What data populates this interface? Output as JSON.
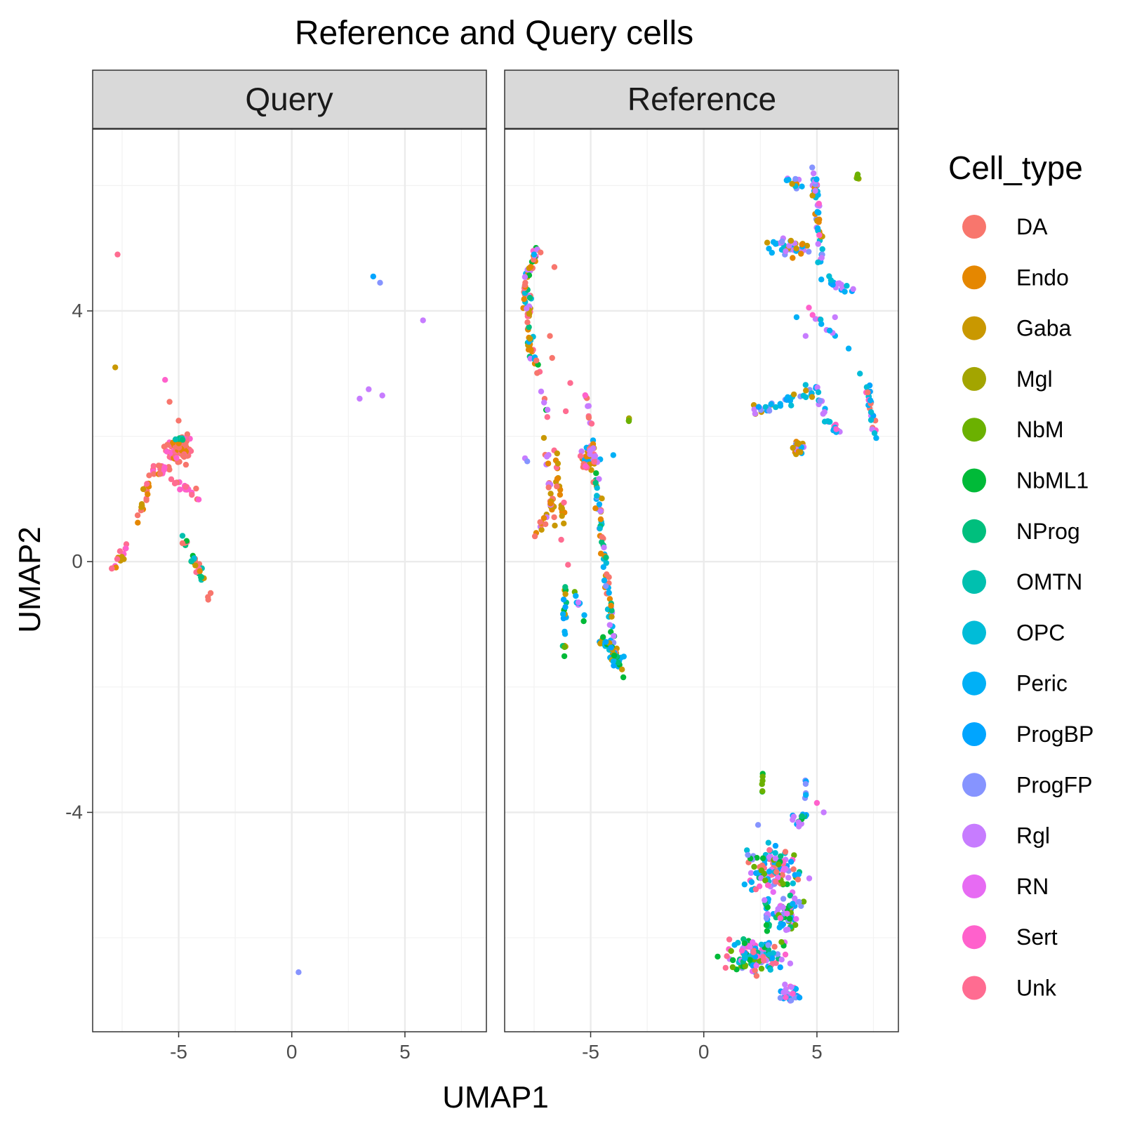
{
  "chart_data": {
    "type": "scatter",
    "title": "Reference and Query cells",
    "xlabel": "UMAP1",
    "ylabel": "UMAP2",
    "xlim": [
      -8.8,
      8.6
    ],
    "ylim": [
      -7.5,
      6.9
    ],
    "x_ticks": [
      -5,
      0,
      5
    ],
    "y_ticks": [
      -4,
      0,
      4
    ],
    "grid": true,
    "legend": {
      "title": "Cell_type",
      "position": "right",
      "entries": [
        {
          "name": "DA",
          "color": "#F8766D"
        },
        {
          "name": "Endo",
          "color": "#E58700"
        },
        {
          "name": "Gaba",
          "color": "#C99800"
        },
        {
          "name": "Mgl",
          "color": "#A3A500"
        },
        {
          "name": "NbM",
          "color": "#6BB100"
        },
        {
          "name": "NbML1",
          "color": "#00BA38"
        },
        {
          "name": "NProg",
          "color": "#00BF7D"
        },
        {
          "name": "OMTN",
          "color": "#00C0AF"
        },
        {
          "name": "OPC",
          "color": "#00BCD8"
        },
        {
          "name": "Peric",
          "color": "#00B0F6"
        },
        {
          "name": "ProgBP",
          "color": "#00A5FF"
        },
        {
          "name": "ProgFP",
          "color": "#8694FF"
        },
        {
          "name": "Rgl",
          "color": "#C77CFF"
        },
        {
          "name": "RN",
          "color": "#E76BF3"
        },
        {
          "name": "Sert",
          "color": "#FF61CC"
        },
        {
          "name": "Unk",
          "color": "#FF6C91"
        }
      ]
    },
    "panels": [
      {
        "label": "Query",
        "clusters": [
          {
            "mix": [
              "DA",
              "DA",
              "DA",
              "DA",
              "Unk",
              "Sert",
              "Endo"
            ],
            "shape": "rect",
            "cx": -5.0,
            "cy": 1.8,
            "rx": 0.8,
            "ry": 0.28,
            "n": 90
          },
          {
            "mix": [
              "DA",
              "DA",
              "Unk",
              "Endo",
              "Sert"
            ],
            "shape": "band",
            "x0": -6.4,
            "y0": 1.4,
            "x1": -5.4,
            "y1": 1.5,
            "w": 0.18,
            "n": 20
          },
          {
            "mix": [
              "DA",
              "Unk",
              "Endo",
              "Gaba"
            ],
            "shape": "band",
            "x0": -6.3,
            "y0": 1.3,
            "x1": -6.8,
            "y1": 0.6,
            "w": 0.18,
            "n": 16
          },
          {
            "mix": [
              "DA",
              "Unk",
              "Endo",
              "Gaba",
              "Sert"
            ],
            "shape": "band",
            "x0": -7.0,
            "y0": 0.4,
            "x1": -8.0,
            "y1": -0.2,
            "w": 0.15,
            "n": 16
          },
          {
            "mix": [
              "DA",
              "Unk",
              "Sert"
            ],
            "shape": "band",
            "x0": -5.4,
            "y0": 1.3,
            "x1": -4.1,
            "y1": 1.0,
            "w": 0.15,
            "n": 18
          },
          {
            "mix": [
              "DA",
              "Unk",
              "OMTN",
              "NbML1",
              "NProg",
              "Endo",
              "Gaba",
              "OPC"
            ],
            "shape": "band",
            "x0": -4.8,
            "y0": 0.4,
            "x1": -3.9,
            "y1": -0.3,
            "w": 0.15,
            "n": 28
          },
          {
            "mix": [
              "DA"
            ],
            "shape": "band",
            "x0": -3.7,
            "y0": -0.6,
            "x1": -3.5,
            "y1": -0.5,
            "w": 0.05,
            "n": 3
          },
          {
            "mix": [
              "OMTN",
              "NProg"
            ],
            "shape": "rect",
            "cx": -5.0,
            "cy": 1.95,
            "rx": 0.4,
            "ry": 0.06,
            "n": 6
          }
        ],
        "points": [
          {
            "x": -7.7,
            "y": 4.9,
            "type": "Unk"
          },
          {
            "x": -7.8,
            "y": 3.1,
            "type": "Gaba"
          },
          {
            "x": -5.6,
            "y": 2.9,
            "type": "Sert"
          },
          {
            "x": -5.4,
            "y": 2.55,
            "type": "DA"
          },
          {
            "x": -5.0,
            "y": 2.25,
            "type": "DA"
          },
          {
            "x": 3.6,
            "y": 4.55,
            "type": "ProgBP"
          },
          {
            "x": 3.9,
            "y": 4.45,
            "type": "ProgFP"
          },
          {
            "x": 5.8,
            "y": 3.85,
            "type": "Rgl"
          },
          {
            "x": 3.4,
            "y": 2.75,
            "type": "Rgl"
          },
          {
            "x": 3.0,
            "y": 2.6,
            "type": "Rgl"
          },
          {
            "x": 4.0,
            "y": 2.65,
            "type": "Rgl"
          },
          {
            "x": 0.3,
            "y": -6.55,
            "type": "ProgFP"
          }
        ]
      },
      {
        "label": "Reference",
        "clusters": [
          {
            "mix": [
              "DA",
              "Endo",
              "Gaba",
              "Unk",
              "Rgl",
              "Peric",
              "Sert",
              "NbML1"
            ],
            "shape": "band",
            "x0": -7.2,
            "y0": 5.1,
            "x1": -7.9,
            "y1": 4.5,
            "w": 0.18,
            "n": 22
          },
          {
            "mix": [
              "DA",
              "Endo",
              "Gaba",
              "Unk",
              "Rgl",
              "Peric",
              "NProg",
              "OPC"
            ],
            "shape": "band",
            "x0": -7.9,
            "y0": 4.5,
            "x1": -7.6,
            "y1": 3.2,
            "w": 0.25,
            "n": 55
          },
          {
            "mix": [
              "Rgl",
              "Unk",
              "Peric",
              "NbML1",
              "DA"
            ],
            "shape": "band",
            "x0": -7.4,
            "y0": 3.2,
            "x1": -6.9,
            "y1": 2.3,
            "w": 0.12,
            "n": 10
          },
          {
            "mix": [
              "Gaba",
              "Endo",
              "DA",
              "Rgl"
            ],
            "shape": "band",
            "x0": -7.0,
            "y0": 2.0,
            "x1": -6.6,
            "y1": 0.6,
            "w": 0.2,
            "n": 22
          },
          {
            "mix": [
              "Gaba",
              "Endo",
              "DA",
              "Rgl"
            ],
            "shape": "band",
            "x0": -7.5,
            "y0": 0.4,
            "x1": -6.6,
            "y1": 1.0,
            "w": 0.14,
            "n": 14
          },
          {
            "mix": [
              "Gaba",
              "Endo",
              "Unk"
            ],
            "shape": "band",
            "x0": -6.6,
            "y0": 1.8,
            "x1": -6.2,
            "y1": 0.6,
            "w": 0.15,
            "n": 20
          },
          {
            "mix": [
              "DA",
              "Unk",
              "Sert",
              "Endo",
              "Gaba",
              "Rgl",
              "Peric"
            ],
            "shape": "rect",
            "cx": -5.1,
            "cy": 1.7,
            "rx": 0.7,
            "ry": 0.35,
            "n": 45
          },
          {
            "mix": [
              "Rgl",
              "Unk",
              "DA",
              "Sert"
            ],
            "shape": "band",
            "x0": -5.3,
            "y0": 2.8,
            "x1": -5.0,
            "y1": 2.2,
            "w": 0.12,
            "n": 10
          },
          {
            "mix": [
              "Gaba",
              "Endo",
              "DA",
              "Peric",
              "NbML1",
              "Rgl",
              "NProg",
              "OPC",
              "ProgFP"
            ],
            "shape": "band",
            "x0": -4.8,
            "y0": 1.4,
            "x1": -3.9,
            "y1": -1.6,
            "w": 0.2,
            "n": 80
          },
          {
            "mix": [
              "NbML1",
              "NbM",
              "Gaba",
              "Endo",
              "Peric",
              "NProg",
              "ProgBP"
            ],
            "shape": "band",
            "x0": -6.1,
            "y0": -0.3,
            "x1": -6.2,
            "y1": -1.5,
            "w": 0.12,
            "n": 20
          },
          {
            "mix": [
              "NbML1",
              "NbM",
              "NProg",
              "Rgl",
              "Peric"
            ],
            "shape": "band",
            "x0": -5.7,
            "y0": -0.5,
            "x1": -5.3,
            "y1": -0.9,
            "w": 0.1,
            "n": 8
          },
          {
            "mix": [
              "NbML1",
              "NProg",
              "Peric",
              "OPC",
              "Gaba",
              "ProgBP"
            ],
            "shape": "band",
            "x0": -4.6,
            "y0": -1.2,
            "x1": -3.6,
            "y1": -1.7,
            "w": 0.18,
            "n": 35
          },
          {
            "mix": [
              "Mgl",
              "NbM"
            ],
            "shape": "rect",
            "cx": -3.3,
            "cy": 2.25,
            "rx": 0.05,
            "ry": 0.05,
            "n": 4
          },
          {
            "mix": [
              "Peric",
              "Endo",
              "OPC",
              "Gaba",
              "Rgl",
              "Sert",
              "ProgFP"
            ],
            "shape": "band",
            "x0": 3.6,
            "y0": 6.1,
            "x1": 5.0,
            "y1": 6.0,
            "w": 0.15,
            "n": 14
          },
          {
            "mix": [
              "Peric",
              "Endo",
              "Gaba",
              "Rgl",
              "OPC",
              "Sert",
              "ProgFP"
            ],
            "shape": "band",
            "x0": 4.9,
            "y0": 6.2,
            "x1": 5.2,
            "y1": 4.8,
            "w": 0.2,
            "n": 50
          },
          {
            "mix": [
              "Rgl",
              "Peric",
              "Endo",
              "Gaba",
              "OPC",
              "ProgFP"
            ],
            "shape": "band",
            "x0": 2.8,
            "y0": 5.0,
            "x1": 4.6,
            "y1": 5.0,
            "w": 0.2,
            "n": 35
          },
          {
            "mix": [
              "Rgl",
              "Peric",
              "OPC",
              "ProgBP"
            ],
            "shape": "band",
            "x0": 4.9,
            "y0": 4.6,
            "x1": 6.6,
            "y1": 4.3,
            "w": 0.12,
            "n": 16
          },
          {
            "mix": [
              "Rgl",
              "Peric",
              "OPC",
              "Sert"
            ],
            "shape": "band",
            "x0": 4.4,
            "y0": 4.1,
            "x1": 5.8,
            "y1": 3.6,
            "w": 0.25,
            "n": 10
          },
          {
            "mix": [
              "Mgl",
              "NbM"
            ],
            "shape": "rect",
            "cx": 6.8,
            "cy": 6.1,
            "rx": 0.1,
            "ry": 0.08,
            "n": 6
          },
          {
            "mix": [
              "Rgl",
              "Peric",
              "OPC",
              "ProgFP",
              "ProgBP",
              "Gaba"
            ],
            "shape": "band",
            "x0": 2.2,
            "y0": 2.4,
            "x1": 5.2,
            "y1": 2.8,
            "w": 0.15,
            "n": 40
          },
          {
            "mix": [
              "Rgl",
              "Peric",
              "OPC",
              "ProgFP",
              "Sert"
            ],
            "shape": "band",
            "x0": 5.0,
            "y0": 2.6,
            "x1": 6.0,
            "y1": 2.0,
            "w": 0.14,
            "n": 22
          },
          {
            "mix": [
              "Rgl",
              "ProgFP",
              "Gaba",
              "Endo",
              "Peric"
            ],
            "shape": "rect",
            "cx": 4.2,
            "cy": 1.8,
            "rx": 0.35,
            "ry": 0.2,
            "n": 22
          },
          {
            "mix": [
              "Rgl",
              "OPC",
              "Peric",
              "ProgBP",
              "Sert",
              "DA"
            ],
            "shape": "band",
            "x0": 7.2,
            "y0": 2.8,
            "x1": 7.6,
            "y1": 2.0,
            "w": 0.15,
            "n": 25
          },
          {
            "mix": [
              "NbML1",
              "NbM"
            ],
            "shape": "band",
            "x0": 2.6,
            "y0": -3.4,
            "x1": 2.6,
            "y1": -3.8,
            "w": 0.05,
            "n": 6
          },
          {
            "mix": [
              "Peric",
              "ProgBP",
              "ProgFP"
            ],
            "shape": "band",
            "x0": 4.5,
            "y0": -3.4,
            "x1": 4.5,
            "y1": -3.8,
            "w": 0.05,
            "n": 6
          },
          {
            "mix": [
              "NProg",
              "NbML1",
              "Rgl",
              "Peric",
              "ProgBP",
              "ProgFP",
              "Sert",
              "RN",
              "Unk",
              "DA",
              "NbM",
              "OPC"
            ],
            "shape": "rect",
            "cx": 3.1,
            "cy": -4.9,
            "rx": 1.8,
            "ry": 0.5,
            "n": 110
          },
          {
            "mix": [
              "NProg",
              "NbML1",
              "Rgl",
              "Peric",
              "ProgBP",
              "ProgFP",
              "Sert",
              "RN",
              "Unk",
              "DA",
              "NbM",
              "OPC"
            ],
            "shape": "rect",
            "cx": 2.3,
            "cy": -6.3,
            "rx": 1.9,
            "ry": 0.4,
            "n": 130
          },
          {
            "mix": [
              "NProg",
              "NbML1",
              "Rgl",
              "Peric",
              "ProgBP",
              "ProgFP",
              "Sert",
              "RN",
              "NbM"
            ],
            "shape": "rect",
            "cx": 3.7,
            "cy": -5.6,
            "rx": 0.9,
            "ry": 0.5,
            "n": 50
          },
          {
            "mix": [
              "NbML1",
              "Rgl",
              "Peric",
              "ProgBP",
              "ProgFP",
              "NProg"
            ],
            "shape": "band",
            "x0": 2.8,
            "y0": -5.3,
            "x1": 2.8,
            "y1": -6.0,
            "w": 0.15,
            "n": 18
          },
          {
            "mix": [
              "Peric",
              "ProgBP",
              "ProgFP",
              "Rgl",
              "OPC",
              "Sert"
            ],
            "shape": "rect",
            "cx": 3.8,
            "cy": -6.9,
            "rx": 0.6,
            "ry": 0.2,
            "n": 30
          },
          {
            "mix": [
              "NProg",
              "NbML1",
              "Rgl",
              "ProgBP"
            ],
            "shape": "rect",
            "cx": 4.2,
            "cy": -4.1,
            "rx": 0.6,
            "ry": 0.2,
            "n": 15
          }
        ],
        "points": [
          {
            "x": -6.6,
            "y": 4.7,
            "type": "DA"
          },
          {
            "x": -6.8,
            "y": 3.6,
            "type": "DA"
          },
          {
            "x": -6.7,
            "y": 3.25,
            "type": "DA"
          },
          {
            "x": -5.9,
            "y": 2.85,
            "type": "Unk"
          },
          {
            "x": -6.1,
            "y": 2.4,
            "type": "Unk"
          },
          {
            "x": -6.5,
            "y": 1.2,
            "type": "DA"
          },
          {
            "x": -6.3,
            "y": 0.35,
            "type": "Unk"
          },
          {
            "x": -6.0,
            "y": -0.05,
            "type": "Unk"
          },
          {
            "x": -7.9,
            "y": 1.65,
            "type": "Rgl"
          },
          {
            "x": -7.8,
            "y": 1.6,
            "type": "ProgFP"
          },
          {
            "x": -4.0,
            "y": 1.7,
            "type": "Peric"
          },
          {
            "x": 6.4,
            "y": 3.4,
            "type": "Peric"
          },
          {
            "x": 6.9,
            "y": 3.0,
            "type": "OPC"
          },
          {
            "x": 4.1,
            "y": 3.9,
            "type": "Peric"
          },
          {
            "x": 4.5,
            "y": 3.6,
            "type": "Rgl"
          },
          {
            "x": 5.8,
            "y": 3.9,
            "type": "Rgl"
          },
          {
            "x": 5.3,
            "y": -4.0,
            "type": "Rgl"
          },
          {
            "x": 2.4,
            "y": -4.2,
            "type": "ProgFP"
          },
          {
            "x": 5.0,
            "y": -3.85,
            "type": "Sert"
          }
        ]
      }
    ]
  }
}
